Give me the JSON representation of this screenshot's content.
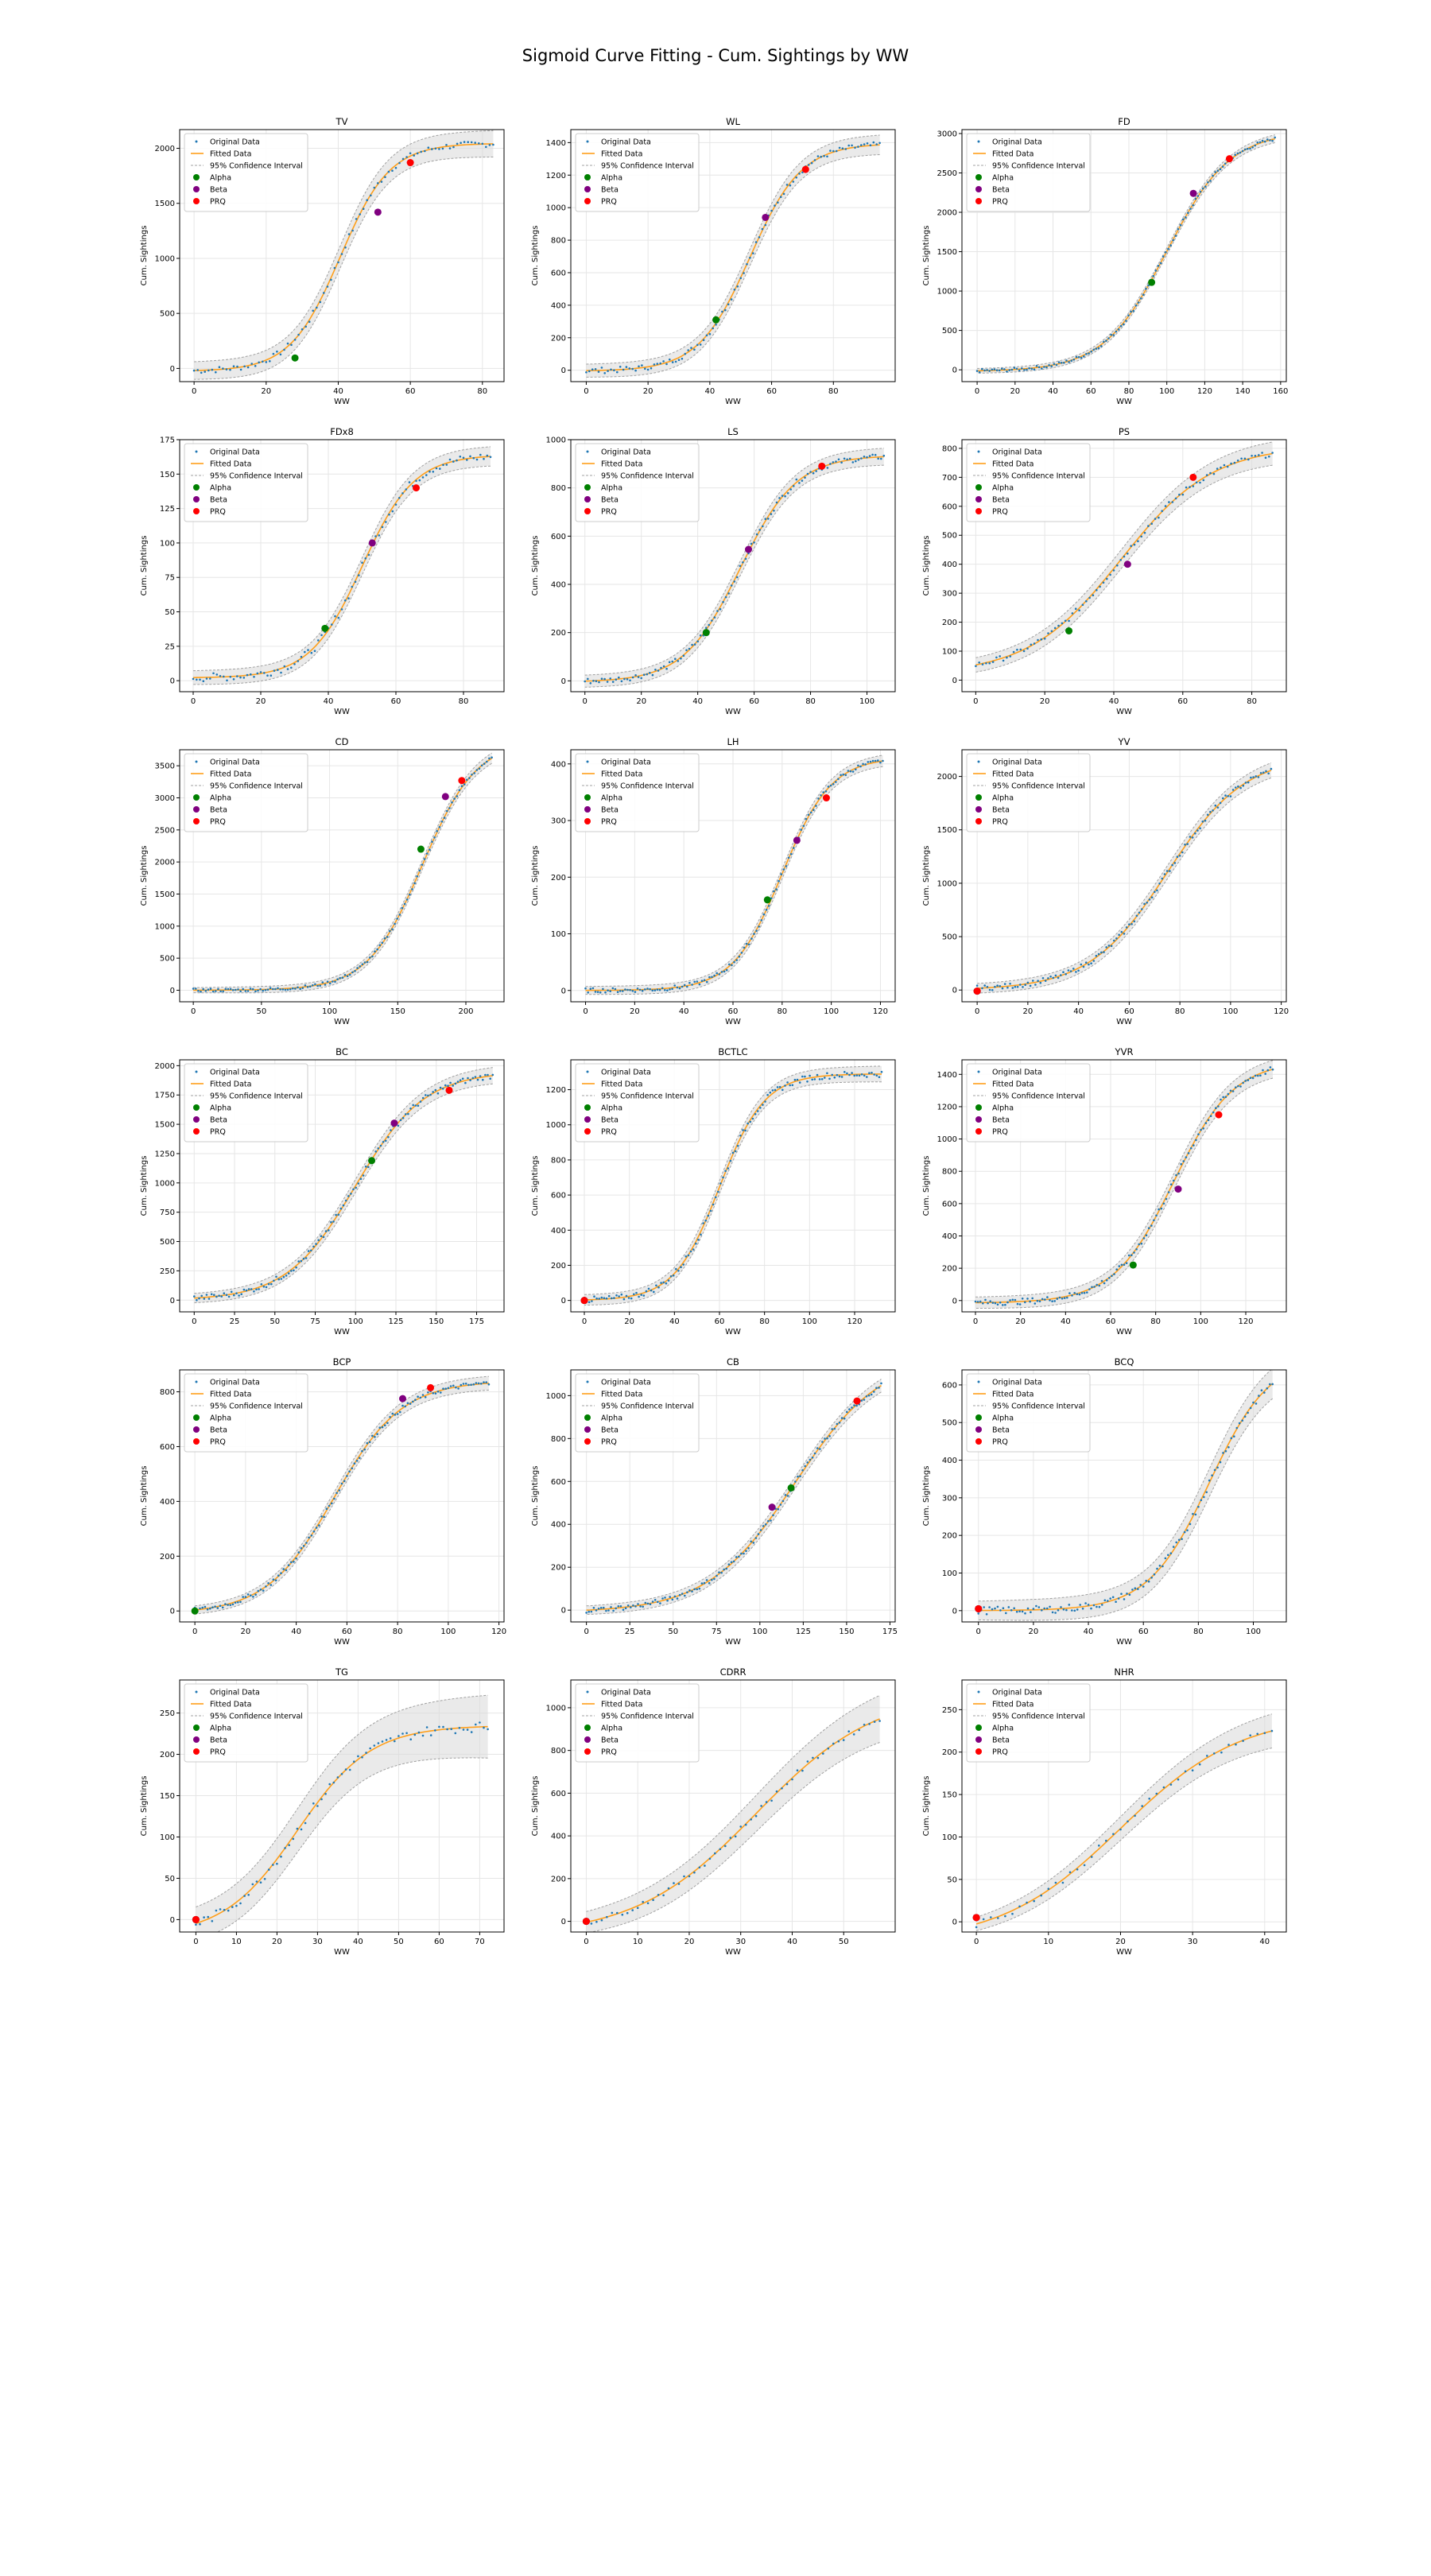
{
  "figure": {
    "title": "Sigmoid Curve Fitting - Cum. Sightings by WW",
    "xlabel": "WW",
    "ylabel": "Cum. Sightings",
    "legend": [
      "Original Data",
      "Fitted Data",
      "95% Confidence Interval",
      "Alpha",
      "Beta",
      "PRQ"
    ]
  },
  "colors": {
    "original": "#1f77b4",
    "fitted": "#ff9f1a",
    "ci_fill": "#d8d8d8",
    "ci_line": "#a0a0a0",
    "alpha": "#008000",
    "beta": "#800080",
    "prq": "#ff0000",
    "grid": "#e6e6e6"
  },
  "chart_data": [
    {
      "type": "scatter",
      "title": "TV",
      "xlim": [
        -4,
        86
      ],
      "ylim": [
        -120,
        2170
      ],
      "xticks": [
        0,
        20,
        40,
        60,
        80
      ],
      "yticks": [
        0,
        500,
        1000,
        1500,
        2000
      ],
      "fit": {
        "L": 2070,
        "k": 0.145,
        "x0": 40.5,
        "b": -25
      },
      "ci": [
        80,
        120
      ],
      "xmax": 83,
      "noise": 28,
      "alpha": {
        "x": 28,
        "y": 95
      },
      "beta": {
        "x": 51,
        "y": 1420
      },
      "prq": {
        "x": 60,
        "y": 1870
      }
    },
    {
      "type": "scatter",
      "title": "WL",
      "xlim": [
        -5,
        100
      ],
      "ylim": [
        -70,
        1480
      ],
      "xticks": [
        0,
        20,
        40,
        60,
        80
      ],
      "yticks": [
        0,
        200,
        400,
        600,
        800,
        1000,
        1200,
        1400
      ],
      "fit": {
        "L": 1400,
        "k": 0.12,
        "x0": 53,
        "b": -5
      },
      "ci": [
        40,
        60
      ],
      "xmax": 95,
      "noise": 18,
      "alpha": {
        "x": 42,
        "y": 310
      },
      "beta": {
        "x": 58,
        "y": 940
      },
      "prq": {
        "x": 71,
        "y": 1235
      }
    },
    {
      "type": "scatter",
      "title": "FD",
      "xlim": [
        -8,
        163
      ],
      "ylim": [
        -150,
        3050
      ],
      "xticks": [
        0,
        20,
        40,
        60,
        80,
        100,
        120,
        140,
        160
      ],
      "yticks": [
        0,
        500,
        1000,
        1500,
        2000,
        2500,
        3000
      ],
      "fit": {
        "L": 3050,
        "k": 0.06,
        "x0": 100,
        "b": -20
      },
      "ci": [
        30,
        50
      ],
      "xmax": 157,
      "noise": 22,
      "alpha": {
        "x": 92,
        "y": 1110
      },
      "beta": {
        "x": 114,
        "y": 2240
      },
      "prq": {
        "x": 133,
        "y": 2680
      }
    },
    {
      "type": "scatter",
      "title": "FDx8",
      "xlim": [
        -4,
        92
      ],
      "ylim": [
        -8,
        175
      ],
      "xticks": [
        0,
        20,
        40,
        60,
        80
      ],
      "yticks": [
        0,
        25,
        50,
        75,
        100,
        125,
        150,
        175
      ],
      "fit": {
        "L": 162,
        "k": 0.13,
        "x0": 50,
        "b": 2
      },
      "ci": [
        5,
        7
      ],
      "xmax": 88,
      "noise": 3,
      "alpha": {
        "x": 39,
        "y": 38
      },
      "beta": {
        "x": 53,
        "y": 100
      },
      "prq": {
        "x": 66,
        "y": 140
      }
    },
    {
      "type": "scatter",
      "title": "LS",
      "xlim": [
        -5,
        110
      ],
      "ylim": [
        -45,
        1000
      ],
      "xticks": [
        0,
        20,
        40,
        60,
        80,
        100
      ],
      "yticks": [
        0,
        200,
        400,
        600,
        800,
        1000
      ],
      "fit": {
        "L": 940,
        "k": 0.1,
        "x0": 55,
        "b": -5
      },
      "ci": [
        25,
        35
      ],
      "xmax": 106,
      "noise": 12,
      "alpha": {
        "x": 43,
        "y": 200
      },
      "beta": {
        "x": 58,
        "y": 545
      },
      "prq": {
        "x": 84,
        "y": 890
      }
    },
    {
      "type": "scatter",
      "title": "PS",
      "xlim": [
        -4,
        90
      ],
      "ylim": [
        -40,
        830
      ],
      "xticks": [
        0,
        20,
        40,
        60,
        80
      ],
      "yticks": [
        0,
        100,
        200,
        300,
        400,
        500,
        600,
        700,
        800
      ],
      "fit": {
        "L": 790,
        "k": 0.075,
        "x0": 42,
        "b": 20
      },
      "ci": [
        25,
        40
      ],
      "xmax": 86,
      "noise": 10,
      "alpha": {
        "x": 27,
        "y": 170
      },
      "beta": {
        "x": 44,
        "y": 400
      },
      "prq": {
        "x": 63,
        "y": 700
      }
    },
    {
      "type": "scatter",
      "title": "CD",
      "xlim": [
        -10,
        228
      ],
      "ylim": [
        -180,
        3750
      ],
      "xticks": [
        0,
        50,
        100,
        150,
        200
      ],
      "yticks": [
        0,
        500,
        1000,
        1500,
        2000,
        2500,
        3000,
        3500
      ],
      "fit": {
        "L": 3900,
        "k": 0.05,
        "x0": 168,
        "b": 0
      },
      "ci": [
        40,
        80
      ],
      "xmax": 219,
      "noise": 25,
      "alpha": {
        "x": 167,
        "y": 2200
      },
      "beta": {
        "x": 185,
        "y": 3020
      },
      "prq": {
        "x": 197,
        "y": 3270
      }
    },
    {
      "type": "scatter",
      "title": "LH",
      "xlim": [
        -6,
        126
      ],
      "ylim": [
        -20,
        425
      ],
      "xticks": [
        0,
        20,
        40,
        60,
        80,
        100,
        120
      ],
      "yticks": [
        0,
        100,
        200,
        300,
        400
      ],
      "fit": {
        "L": 412,
        "k": 0.1,
        "x0": 80,
        "b": 0
      },
      "ci": [
        7,
        10
      ],
      "xmax": 121,
      "noise": 4,
      "alpha": {
        "x": 74,
        "y": 160
      },
      "beta": {
        "x": 86,
        "y": 265
      },
      "prq": {
        "x": 98,
        "y": 340
      }
    },
    {
      "type": "scatter",
      "title": "YV",
      "xlim": [
        -6,
        122
      ],
      "ylim": [
        -110,
        2250
      ],
      "xticks": [
        0,
        20,
        40,
        60,
        80,
        100,
        120
      ],
      "yticks": [
        0,
        500,
        1000,
        1500,
        2000
      ],
      "fit": {
        "L": 2200,
        "k": 0.065,
        "x0": 75,
        "b": 0
      },
      "ci": [
        45,
        70
      ],
      "xmax": 116,
      "noise": 25,
      "alpha": {
        "x": 0,
        "y": -10
      },
      "beta": {
        "x": 0,
        "y": -10
      },
      "prq": {
        "x": 0,
        "y": -10
      }
    },
    {
      "type": "scatter",
      "title": "BC",
      "xlim": [
        -9,
        192
      ],
      "ylim": [
        -100,
        2050
      ],
      "xticks": [
        0,
        25,
        50,
        75,
        100,
        125,
        150,
        175
      ],
      "yticks": [
        0,
        250,
        500,
        750,
        1000,
        1250,
        1500,
        1750,
        2000
      ],
      "fit": {
        "L": 1950,
        "k": 0.047,
        "x0": 100,
        "b": 0
      },
      "ci": [
        40,
        70
      ],
      "xmax": 185,
      "noise": 25,
      "alpha": {
        "x": 110,
        "y": 1190
      },
      "beta": {
        "x": 124,
        "y": 1510
      },
      "prq": {
        "x": 158,
        "y": 1790
      }
    },
    {
      "type": "scatter",
      "title": "BCTLC",
      "xlim": [
        -6,
        138
      ],
      "ylim": [
        -65,
        1370
      ],
      "xticks": [
        0,
        20,
        40,
        60,
        80,
        100,
        120
      ],
      "yticks": [
        0,
        200,
        400,
        600,
        800,
        1000,
        1200
      ],
      "fit": {
        "L": 1290,
        "k": 0.1,
        "x0": 60,
        "b": 0
      },
      "ci": [
        30,
        45
      ],
      "xmax": 132,
      "noise": 18,
      "alpha": {
        "x": 0,
        "y": 0
      },
      "beta": {
        "x": 0,
        "y": 0
      },
      "prq": {
        "x": 0,
        "y": 0
      }
    },
    {
      "type": "scatter",
      "title": "YVR",
      "xlim": [
        -6,
        138
      ],
      "ylim": [
        -70,
        1490
      ],
      "xticks": [
        0,
        20,
        40,
        60,
        80,
        100,
        120
      ],
      "yticks": [
        0,
        200,
        400,
        600,
        800,
        1000,
        1200,
        1400
      ],
      "fit": {
        "L": 1500,
        "k": 0.075,
        "x0": 88,
        "b": -15
      },
      "ci": [
        35,
        55
      ],
      "xmax": 132,
      "noise": 18,
      "alpha": {
        "x": 70,
        "y": 220
      },
      "beta": {
        "x": 90,
        "y": 690
      },
      "prq": {
        "x": 108,
        "y": 1150
      }
    },
    {
      "type": "scatter",
      "title": "BCP",
      "xlim": [
        -6,
        122
      ],
      "ylim": [
        -40,
        880
      ],
      "xticks": [
        0,
        20,
        40,
        60,
        80,
        100,
        120
      ],
      "yticks": [
        0,
        200,
        400,
        600,
        800
      ],
      "fit": {
        "L": 850,
        "k": 0.075,
        "x0": 55,
        "b": -10
      },
      "ci": [
        15,
        25
      ],
      "xmax": 116,
      "noise": 9,
      "alpha": {
        "x": 0,
        "y": 0
      },
      "beta": {
        "x": 82,
        "y": 775
      },
      "prq": {
        "x": 93,
        "y": 815
      }
    },
    {
      "type": "scatter",
      "title": "CB",
      "xlim": [
        -9,
        178
      ],
      "ylim": [
        -55,
        1120
      ],
      "xticks": [
        0,
        25,
        50,
        75,
        100,
        125,
        150,
        175
      ],
      "yticks": [
        0,
        200,
        400,
        600,
        800,
        1000
      ],
      "fit": {
        "L": 1200,
        "k": 0.04,
        "x0": 120,
        "b": -10
      },
      "ci": [
        20,
        30
      ],
      "xmax": 170,
      "noise": 12,
      "alpha": {
        "x": 118,
        "y": 570
      },
      "beta": {
        "x": 107,
        "y": 480
      },
      "prq": {
        "x": 156,
        "y": 975
      }
    },
    {
      "type": "scatter",
      "title": "BCQ",
      "xlim": [
        -6,
        112
      ],
      "ylim": [
        -30,
        640
      ],
      "xticks": [
        0,
        20,
        40,
        60,
        80,
        100
      ],
      "yticks": [
        0,
        100,
        200,
        300,
        400,
        500,
        600
      ],
      "fit": {
        "L": 680,
        "k": 0.09,
        "x0": 84,
        "b": 0
      },
      "ci": [
        25,
        40
      ],
      "xmax": 107,
      "noise": 10,
      "alpha": {
        "x": 0,
        "y": 5
      },
      "beta": {
        "x": 0,
        "y": 5
      },
      "prq": {
        "x": 0,
        "y": 5
      }
    },
    {
      "type": "scatter",
      "title": "TG",
      "xlim": [
        -4,
        76
      ],
      "ylim": [
        -15,
        290
      ],
      "xticks": [
        0,
        10,
        20,
        30,
        40,
        50,
        60,
        70
      ],
      "yticks": [
        0,
        50,
        100,
        150,
        200,
        250
      ],
      "fit": {
        "L": 255,
        "k": 0.11,
        "x0": 25,
        "b": -20
      },
      "ci": [
        20,
        38
      ],
      "xmax": 72,
      "noise": 6,
      "alpha": {
        "x": 0,
        "y": 0
      },
      "beta": {
        "x": 0,
        "y": 0
      },
      "prq": {
        "x": 0,
        "y": 0
      }
    },
    {
      "type": "scatter",
      "title": "CDRR",
      "xlim": [
        -3,
        60
      ],
      "ylim": [
        -50,
        1130
      ],
      "xticks": [
        0,
        10,
        20,
        30,
        40,
        50
      ],
      "yticks": [
        0,
        200,
        400,
        600,
        800,
        1000
      ],
      "fit": {
        "L": 1150,
        "k": 0.085,
        "x0": 33,
        "b": -70
      },
      "ci": [
        50,
        110
      ],
      "xmax": 57,
      "noise": 14,
      "alpha": {
        "x": 0,
        "y": 0
      },
      "beta": {
        "x": 0,
        "y": 0
      },
      "prq": {
        "x": 0,
        "y": 0
      }
    },
    {
      "type": "scatter",
      "title": "NHR",
      "xlim": [
        -2,
        43
      ],
      "ylim": [
        -12,
        285
      ],
      "xticks": [
        0,
        10,
        20,
        30,
        40
      ],
      "yticks": [
        0,
        50,
        100,
        150,
        200,
        250
      ],
      "fit": {
        "L": 270,
        "k": 0.12,
        "x0": 20,
        "b": -25
      },
      "ci": [
        8,
        20
      ],
      "xmax": 41,
      "noise": 4,
      "alpha": {
        "x": 0,
        "y": 5
      },
      "beta": {
        "x": 0,
        "y": 5
      },
      "prq": {
        "x": 0,
        "y": 5
      }
    }
  ]
}
